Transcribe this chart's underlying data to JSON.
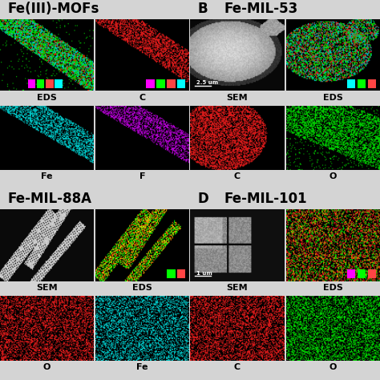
{
  "bg_color": "#d4d4d4",
  "title_fontsize": 11,
  "label_fontsize": 9,
  "panel_A_title": "Fe(III)-MOFs",
  "panel_B_title": "Fe-MIL-53",
  "panel_C_title": "Fe-MIL-88A",
  "panel_D_title": "Fe-MIL-101",
  "subtitles_A": [
    "EDS",
    "C",
    "Fe",
    "F"
  ],
  "subtitles_B": [
    "SEM",
    "EDS",
    "C",
    "O"
  ],
  "subtitles_C": [
    "SEM",
    "EDS",
    "O",
    "Fe"
  ],
  "subtitles_D": [
    "SEM",
    "EDS",
    "C",
    "O"
  ],
  "scale_B": "2.5 um",
  "scale_D": "1 um",
  "legend_colors_A": [
    "#ff00ff",
    "#00ff00",
    "#ff4444",
    "#00ffff"
  ],
  "legend_colors_B": [
    "#00ffff",
    "#00ff00",
    "#ff4444"
  ],
  "legend_colors_C": [
    "#00ff00",
    "#ff4444"
  ],
  "legend_colors_D": [
    "#ff00ff",
    "#00ff00",
    "#ff4444"
  ]
}
